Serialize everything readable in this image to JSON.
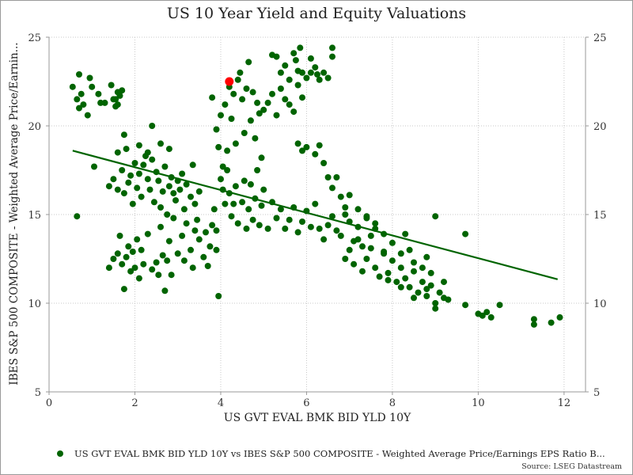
{
  "chart_data": {
    "type": "scatter",
    "title": "US 10 Year Yield and Equity Valuations",
    "xlabel": "US GVT EVAL BMK BID YLD 10Y",
    "ylabel": "IBES S&P 500 COMPOSITE - Weighted Average Price/Earnin...",
    "xlim": [
      0,
      12.5
    ],
    "ylim": [
      5,
      25
    ],
    "xticks": [
      0,
      2,
      4,
      6,
      8,
      10,
      12
    ],
    "yticks": [
      5,
      10,
      15,
      20,
      25
    ],
    "grid": true,
    "legend": "bottom",
    "colors": {
      "points": "#006400",
      "trend": "#006400",
      "latest": "#ff0000"
    },
    "series": [
      {
        "name": "US GVT EVAL BMK BID YLD 10Y vs IBES S&P 500 COMPOSITE - Weighted Average Price/Earnings EPS Ratio B...",
        "points": [
          [
            0.55,
            22.2
          ],
          [
            0.65,
            21.5
          ],
          [
            0.7,
            21.0
          ],
          [
            0.7,
            22.9
          ],
          [
            0.75,
            21.8
          ],
          [
            0.8,
            21.2
          ],
          [
            0.9,
            20.6
          ],
          [
            0.95,
            22.7
          ],
          [
            1.0,
            22.2
          ],
          [
            1.15,
            21.8
          ],
          [
            1.2,
            21.3
          ],
          [
            1.3,
            21.3
          ],
          [
            1.45,
            22.3
          ],
          [
            1.5,
            21.5
          ],
          [
            1.55,
            21.1
          ],
          [
            1.6,
            21.9
          ],
          [
            1.65,
            21.7
          ],
          [
            1.7,
            22.0
          ],
          [
            1.55,
            21.5
          ],
          [
            1.6,
            21.2
          ],
          [
            0.65,
            14.9
          ],
          [
            1.05,
            17.7
          ],
          [
            1.4,
            16.6
          ],
          [
            1.5,
            17.0
          ],
          [
            1.6,
            16.4
          ],
          [
            1.7,
            17.5
          ],
          [
            1.75,
            16.2
          ],
          [
            1.8,
            18.7
          ],
          [
            1.85,
            16.8
          ],
          [
            1.9,
            17.2
          ],
          [
            1.95,
            15.6
          ],
          [
            2.0,
            17.9
          ],
          [
            2.05,
            16.5
          ],
          [
            2.1,
            17.3
          ],
          [
            2.15,
            16.0
          ],
          [
            2.2,
            17.8
          ],
          [
            2.25,
            18.3
          ],
          [
            2.3,
            17.0
          ],
          [
            2.35,
            16.4
          ],
          [
            2.4,
            18.1
          ],
          [
            2.45,
            15.7
          ],
          [
            2.5,
            17.4
          ],
          [
            2.55,
            16.9
          ],
          [
            2.6,
            15.4
          ],
          [
            2.65,
            16.3
          ],
          [
            2.7,
            17.7
          ],
          [
            2.75,
            15.0
          ],
          [
            2.8,
            16.6
          ],
          [
            2.85,
            17.1
          ],
          [
            2.9,
            16.2
          ],
          [
            2.95,
            15.8
          ],
          [
            3.0,
            16.9
          ],
          [
            3.05,
            16.4
          ],
          [
            3.1,
            17.3
          ],
          [
            3.15,
            15.3
          ],
          [
            3.2,
            16.7
          ],
          [
            3.3,
            16.0
          ],
          [
            3.35,
            17.8
          ],
          [
            3.4,
            15.6
          ],
          [
            3.45,
            14.7
          ],
          [
            3.5,
            16.3
          ],
          [
            1.75,
            19.5
          ],
          [
            2.1,
            18.9
          ],
          [
            2.3,
            18.5
          ],
          [
            2.4,
            20.0
          ],
          [
            2.6,
            19.0
          ],
          [
            2.8,
            18.7
          ],
          [
            1.6,
            18.5
          ],
          [
            1.4,
            12.0
          ],
          [
            1.5,
            12.5
          ],
          [
            1.6,
            12.8
          ],
          [
            1.65,
            13.8
          ],
          [
            1.7,
            12.2
          ],
          [
            1.75,
            10.8
          ],
          [
            1.8,
            12.6
          ],
          [
            1.85,
            13.2
          ],
          [
            1.9,
            11.8
          ],
          [
            1.95,
            12.9
          ],
          [
            2.0,
            12.0
          ],
          [
            2.05,
            13.6
          ],
          [
            2.1,
            11.4
          ],
          [
            2.15,
            13.0
          ],
          [
            2.2,
            12.2
          ],
          [
            2.3,
            13.9
          ],
          [
            2.4,
            11.9
          ],
          [
            2.5,
            12.3
          ],
          [
            2.55,
            11.6
          ],
          [
            2.6,
            14.3
          ],
          [
            2.65,
            12.7
          ],
          [
            2.7,
            10.7
          ],
          [
            2.75,
            12.4
          ],
          [
            2.8,
            13.5
          ],
          [
            2.85,
            11.6
          ],
          [
            2.9,
            14.8
          ],
          [
            3.0,
            12.8
          ],
          [
            3.1,
            13.8
          ],
          [
            3.15,
            12.4
          ],
          [
            3.2,
            14.5
          ],
          [
            3.3,
            13.0
          ],
          [
            3.35,
            12.0
          ],
          [
            3.4,
            14.1
          ],
          [
            3.5,
            13.6
          ],
          [
            3.6,
            12.6
          ],
          [
            3.65,
            14.0
          ],
          [
            3.7,
            12.1
          ],
          [
            3.75,
            13.2
          ],
          [
            3.8,
            14.4
          ],
          [
            3.9,
            13.0
          ],
          [
            3.95,
            10.4
          ],
          [
            3.85,
            15.3
          ],
          [
            3.9,
            14.1
          ],
          [
            3.8,
            21.6
          ],
          [
            3.9,
            19.8
          ],
          [
            3.95,
            18.8
          ],
          [
            4.0,
            20.6
          ],
          [
            4.05,
            17.7
          ],
          [
            4.1,
            21.2
          ],
          [
            4.15,
            18.6
          ],
          [
            4.2,
            22.2
          ],
          [
            4.25,
            20.4
          ],
          [
            4.3,
            21.8
          ],
          [
            4.35,
            19.0
          ],
          [
            4.4,
            22.6
          ],
          [
            4.5,
            21.5
          ],
          [
            4.55,
            19.6
          ],
          [
            4.6,
            22.1
          ],
          [
            4.7,
            20.3
          ],
          [
            4.75,
            21.9
          ],
          [
            4.8,
            19.3
          ],
          [
            4.85,
            21.3
          ],
          [
            4.9,
            20.7
          ],
          [
            4.95,
            18.2
          ],
          [
            5.0,
            20.9
          ],
          [
            5.1,
            21.3
          ],
          [
            5.2,
            21.8
          ],
          [
            5.3,
            20.6
          ],
          [
            5.4,
            22.1
          ],
          [
            5.5,
            21.5
          ],
          [
            5.6,
            21.2
          ],
          [
            5.7,
            20.8
          ],
          [
            5.8,
            22.3
          ],
          [
            5.9,
            21.6
          ],
          [
            4.45,
            23.0
          ],
          [
            4.65,
            23.6
          ],
          [
            5.2,
            24.0
          ],
          [
            5.3,
            23.9
          ],
          [
            5.4,
            23.0
          ],
          [
            5.5,
            23.4
          ],
          [
            5.6,
            22.6
          ],
          [
            5.7,
            24.1
          ],
          [
            5.75,
            23.7
          ],
          [
            5.8,
            23.1
          ],
          [
            5.85,
            24.4
          ],
          [
            5.9,
            23.0
          ],
          [
            6.0,
            22.7
          ],
          [
            6.1,
            23.8
          ],
          [
            6.2,
            23.3
          ],
          [
            6.3,
            22.6
          ],
          [
            6.4,
            23.0
          ],
          [
            6.5,
            22.7
          ],
          [
            6.6,
            24.4
          ],
          [
            6.6,
            23.9
          ],
          [
            6.1,
            23.0
          ],
          [
            6.25,
            22.9
          ],
          [
            4.0,
            17.0
          ],
          [
            4.05,
            16.4
          ],
          [
            4.1,
            15.6
          ],
          [
            4.15,
            17.5
          ],
          [
            4.2,
            16.2
          ],
          [
            4.25,
            14.9
          ],
          [
            4.3,
            15.6
          ],
          [
            4.35,
            16.6
          ],
          [
            4.4,
            14.5
          ],
          [
            4.5,
            15.7
          ],
          [
            4.55,
            16.9
          ],
          [
            4.6,
            14.2
          ],
          [
            4.65,
            15.3
          ],
          [
            4.7,
            16.7
          ],
          [
            4.75,
            14.7
          ],
          [
            4.8,
            15.9
          ],
          [
            4.85,
            17.5
          ],
          [
            4.9,
            14.4
          ],
          [
            4.95,
            15.5
          ],
          [
            5.0,
            16.4
          ],
          [
            5.1,
            14.2
          ],
          [
            5.2,
            15.7
          ],
          [
            5.3,
            14.8
          ],
          [
            5.4,
            15.3
          ],
          [
            5.5,
            14.2
          ],
          [
            5.6,
            14.7
          ],
          [
            5.7,
            15.4
          ],
          [
            5.8,
            14.0
          ],
          [
            5.9,
            14.6
          ],
          [
            6.0,
            15.2
          ],
          [
            6.1,
            14.3
          ],
          [
            6.2,
            15.6
          ],
          [
            6.3,
            14.2
          ],
          [
            6.4,
            13.6
          ],
          [
            6.5,
            14.4
          ],
          [
            6.6,
            14.9
          ],
          [
            6.7,
            14.1
          ],
          [
            6.8,
            13.8
          ],
          [
            6.9,
            15.0
          ],
          [
            7.0,
            14.6
          ],
          [
            7.1,
            13.5
          ],
          [
            7.2,
            14.3
          ],
          [
            7.3,
            13.2
          ],
          [
            7.4,
            14.8
          ],
          [
            7.5,
            13.8
          ],
          [
            7.6,
            14.2
          ],
          [
            5.8,
            19.0
          ],
          [
            5.9,
            18.6
          ],
          [
            6.0,
            18.8
          ],
          [
            6.2,
            18.4
          ],
          [
            6.3,
            18.9
          ],
          [
            6.4,
            17.9
          ],
          [
            6.5,
            17.1
          ],
          [
            6.6,
            16.5
          ],
          [
            6.7,
            17.1
          ],
          [
            6.8,
            16.0
          ],
          [
            6.9,
            15.4
          ],
          [
            7.0,
            16.1
          ],
          [
            7.2,
            15.3
          ],
          [
            7.4,
            14.9
          ],
          [
            7.6,
            14.5
          ],
          [
            7.8,
            13.9
          ],
          [
            6.9,
            12.5
          ],
          [
            7.0,
            13.0
          ],
          [
            7.1,
            12.2
          ],
          [
            7.2,
            13.6
          ],
          [
            7.3,
            11.8
          ],
          [
            7.4,
            12.5
          ],
          [
            7.5,
            13.1
          ],
          [
            7.6,
            12.0
          ],
          [
            7.7,
            11.5
          ],
          [
            7.8,
            12.8
          ],
          [
            7.9,
            11.7
          ],
          [
            8.0,
            12.4
          ],
          [
            8.1,
            11.2
          ],
          [
            8.2,
            12.0
          ],
          [
            8.3,
            11.4
          ],
          [
            8.4,
            10.9
          ],
          [
            8.5,
            11.8
          ],
          [
            8.6,
            10.6
          ],
          [
            8.7,
            11.2
          ],
          [
            8.8,
            10.4
          ],
          [
            8.9,
            11.0
          ],
          [
            9.0,
            10.0
          ],
          [
            9.1,
            10.6
          ],
          [
            9.2,
            10.3
          ],
          [
            9.3,
            10.2
          ],
          [
            9.0,
            9.7
          ],
          [
            8.8,
            10.8
          ],
          [
            8.5,
            10.3
          ],
          [
            8.2,
            10.9
          ],
          [
            7.9,
            11.3
          ],
          [
            8.0,
            13.4
          ],
          [
            8.2,
            12.8
          ],
          [
            8.4,
            13.0
          ],
          [
            8.5,
            12.3
          ],
          [
            8.7,
            12.0
          ],
          [
            8.8,
            12.6
          ],
          [
            8.9,
            11.7
          ],
          [
            9.0,
            14.9
          ],
          [
            9.2,
            11.2
          ],
          [
            9.7,
            13.9
          ],
          [
            7.8,
            12.9
          ],
          [
            8.3,
            13.9
          ],
          [
            9.7,
            9.9
          ],
          [
            10.0,
            9.4
          ],
          [
            10.1,
            9.3
          ],
          [
            10.2,
            9.5
          ],
          [
            10.3,
            9.2
          ],
          [
            10.5,
            9.9
          ],
          [
            11.3,
            8.8
          ],
          [
            11.3,
            9.1
          ],
          [
            11.7,
            8.9
          ],
          [
            11.9,
            9.2
          ]
        ]
      }
    ],
    "trendline": {
      "x": [
        0.55,
        11.85
      ],
      "y": [
        18.6,
        11.35
      ]
    },
    "latest_point": {
      "x": 4.2,
      "y": 22.5
    }
  },
  "source": "Source: LSEG Datastream"
}
